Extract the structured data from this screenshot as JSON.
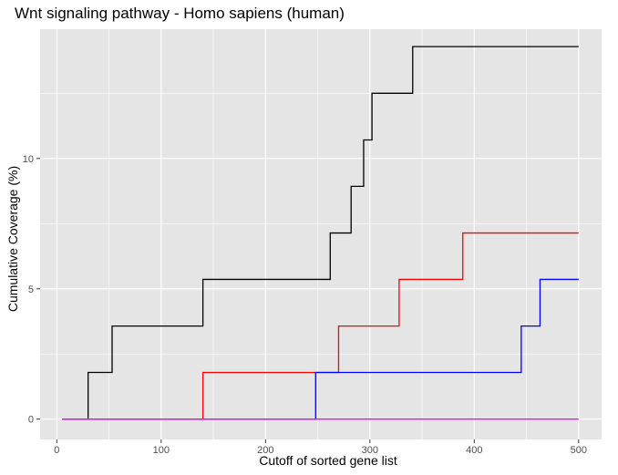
{
  "chart_data": {
    "type": "line",
    "step": true,
    "title": "Wnt signaling pathway - Homo sapiens (human)",
    "xlabel": "Cutoff of sorted gene list",
    "ylabel": "Cumulative Coverage (%)",
    "xlim": [
      -16,
      522
    ],
    "ylim": [
      -0.78,
      14.96
    ],
    "x_ticks": [
      0,
      100,
      200,
      300,
      400,
      500
    ],
    "x_tick_labels": [
      "0",
      "100",
      "200",
      "300",
      "400",
      "500"
    ],
    "y_ticks": [
      0,
      5,
      10
    ],
    "y_tick_labels": [
      "0",
      "5",
      "10"
    ],
    "grid": true,
    "legend": false,
    "panel_background": "#e5e5e5",
    "grid_color": "#ffffff",
    "series": [
      {
        "color": "#000000",
        "points": [
          [
            5,
            0
          ],
          [
            30,
            0
          ],
          [
            30,
            1.79
          ],
          [
            53,
            1.79
          ],
          [
            53,
            3.57
          ],
          [
            140,
            3.57
          ],
          [
            140,
            5.36
          ],
          [
            262,
            5.36
          ],
          [
            262,
            7.14
          ],
          [
            282,
            7.14
          ],
          [
            282,
            8.93
          ],
          [
            294,
            8.93
          ],
          [
            294,
            10.71
          ],
          [
            302,
            10.71
          ],
          [
            302,
            12.5
          ],
          [
            341,
            12.5
          ],
          [
            341,
            14.29
          ],
          [
            500,
            14.29
          ]
        ]
      },
      {
        "color": "#ff0000",
        "points": [
          [
            5,
            0
          ],
          [
            140,
            0
          ],
          [
            140,
            1.79
          ],
          [
            270,
            1.79
          ],
          [
            270,
            3.57
          ],
          [
            328,
            3.57
          ],
          [
            328,
            5.36
          ],
          [
            389,
            5.36
          ],
          [
            389,
            7.14
          ],
          [
            500,
            7.14
          ]
        ]
      },
      {
        "color": "#0000ff",
        "points": [
          [
            5,
            0
          ],
          [
            248,
            0
          ],
          [
            248,
            1.79
          ],
          [
            445,
            1.79
          ],
          [
            445,
            3.57
          ],
          [
            463,
            3.57
          ],
          [
            463,
            5.36
          ],
          [
            500,
            5.36
          ]
        ]
      },
      {
        "color": "#ff00ff",
        "points": [
          [
            5,
            0
          ],
          [
            500,
            0
          ]
        ]
      }
    ]
  }
}
